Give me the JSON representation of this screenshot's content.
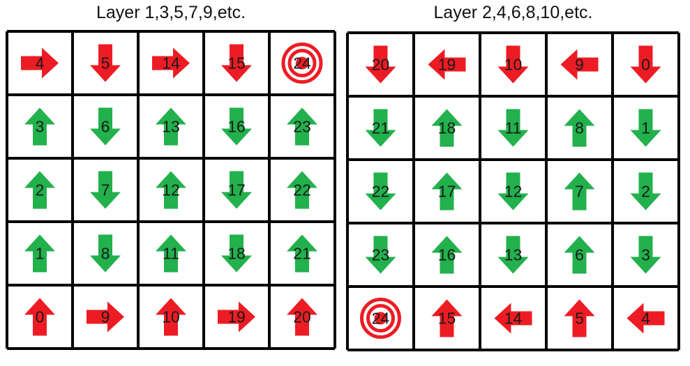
{
  "colors": {
    "red": "#ed1c24",
    "green": "#22b14c",
    "line": "#000000",
    "text": "#1a1a1a"
  },
  "layers": [
    {
      "title": "Layer 1,3,5,7,9,etc.",
      "rows": [
        [
          {
            "n": "4",
            "dir": "right",
            "color": "red"
          },
          {
            "n": "5",
            "dir": "down",
            "color": "red"
          },
          {
            "n": "14",
            "dir": "right",
            "color": "red"
          },
          {
            "n": "15",
            "dir": "down",
            "color": "red"
          },
          {
            "n": "24",
            "dir": "target",
            "color": "red"
          }
        ],
        [
          {
            "n": "3",
            "dir": "up",
            "color": "green"
          },
          {
            "n": "6",
            "dir": "down",
            "color": "green"
          },
          {
            "n": "13",
            "dir": "up",
            "color": "green"
          },
          {
            "n": "16",
            "dir": "down",
            "color": "green"
          },
          {
            "n": "23",
            "dir": "up",
            "color": "green"
          }
        ],
        [
          {
            "n": "2",
            "dir": "up",
            "color": "green"
          },
          {
            "n": "7",
            "dir": "down",
            "color": "green"
          },
          {
            "n": "12",
            "dir": "up",
            "color": "green"
          },
          {
            "n": "17",
            "dir": "down",
            "color": "green"
          },
          {
            "n": "22",
            "dir": "up",
            "color": "green"
          }
        ],
        [
          {
            "n": "1",
            "dir": "up",
            "color": "green"
          },
          {
            "n": "8",
            "dir": "down",
            "color": "green"
          },
          {
            "n": "11",
            "dir": "up",
            "color": "green"
          },
          {
            "n": "18",
            "dir": "down",
            "color": "green"
          },
          {
            "n": "21",
            "dir": "up",
            "color": "green"
          }
        ],
        [
          {
            "n": "0",
            "dir": "up",
            "color": "red"
          },
          {
            "n": "9",
            "dir": "right",
            "color": "red"
          },
          {
            "n": "10",
            "dir": "up",
            "color": "red"
          },
          {
            "n": "19",
            "dir": "right",
            "color": "red"
          },
          {
            "n": "20",
            "dir": "up",
            "color": "red"
          }
        ]
      ]
    },
    {
      "title": "Layer 2,4,6,8,10,etc.",
      "rows": [
        [
          {
            "n": "20",
            "dir": "down",
            "color": "red"
          },
          {
            "n": "19",
            "dir": "left",
            "color": "red"
          },
          {
            "n": "10",
            "dir": "down",
            "color": "red"
          },
          {
            "n": "9",
            "dir": "left",
            "color": "red"
          },
          {
            "n": "0",
            "dir": "down",
            "color": "red"
          }
        ],
        [
          {
            "n": "21",
            "dir": "down",
            "color": "green"
          },
          {
            "n": "18",
            "dir": "up",
            "color": "green"
          },
          {
            "n": "11",
            "dir": "down",
            "color": "green"
          },
          {
            "n": "8",
            "dir": "up",
            "color": "green"
          },
          {
            "n": "1",
            "dir": "down",
            "color": "green"
          }
        ],
        [
          {
            "n": "22",
            "dir": "down",
            "color": "green"
          },
          {
            "n": "17",
            "dir": "up",
            "color": "green"
          },
          {
            "n": "12",
            "dir": "down",
            "color": "green"
          },
          {
            "n": "7",
            "dir": "up",
            "color": "green"
          },
          {
            "n": "2",
            "dir": "down",
            "color": "green"
          }
        ],
        [
          {
            "n": "23",
            "dir": "down",
            "color": "green"
          },
          {
            "n": "16",
            "dir": "up",
            "color": "green"
          },
          {
            "n": "13",
            "dir": "down",
            "color": "green"
          },
          {
            "n": "6",
            "dir": "up",
            "color": "green"
          },
          {
            "n": "3",
            "dir": "down",
            "color": "green"
          }
        ],
        [
          {
            "n": "24",
            "dir": "target",
            "color": "red"
          },
          {
            "n": "15",
            "dir": "up",
            "color": "red"
          },
          {
            "n": "14",
            "dir": "left",
            "color": "red"
          },
          {
            "n": "5",
            "dir": "up",
            "color": "red"
          },
          {
            "n": "4",
            "dir": "left",
            "color": "red"
          }
        ]
      ]
    }
  ]
}
